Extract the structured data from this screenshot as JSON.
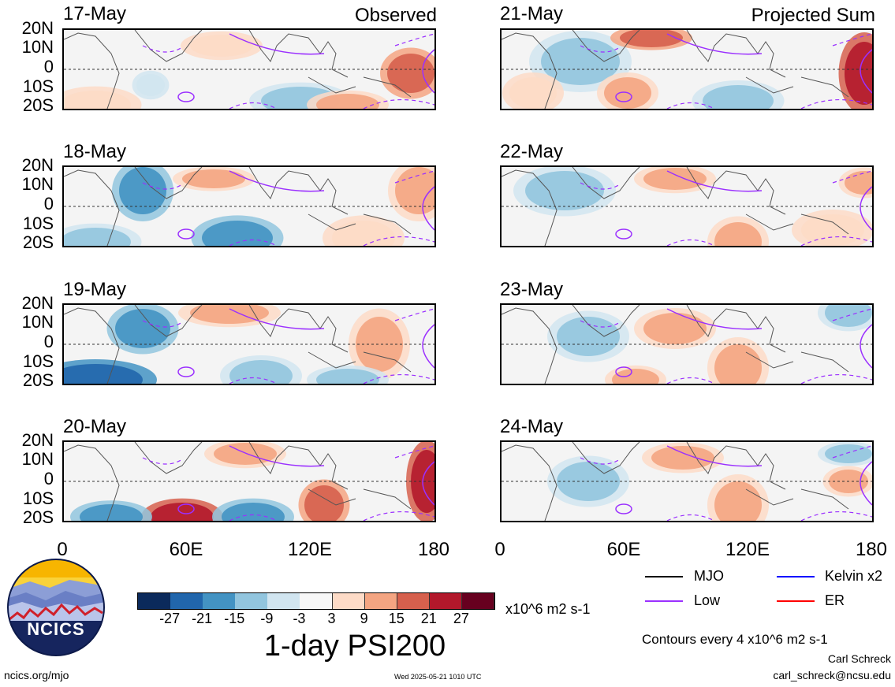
{
  "panels": [
    {
      "id": "p1",
      "date": "17-May",
      "tag": "Observed"
    },
    {
      "id": "p2",
      "date": "18-May",
      "tag": ""
    },
    {
      "id": "p3",
      "date": "19-May",
      "tag": ""
    },
    {
      "id": "p4",
      "date": "20-May",
      "tag": ""
    },
    {
      "id": "p5",
      "date": "21-May",
      "tag": "Projected Sum"
    },
    {
      "id": "p6",
      "date": "22-May",
      "tag": ""
    },
    {
      "id": "p7",
      "date": "23-May",
      "tag": ""
    },
    {
      "id": "p8",
      "date": "24-May",
      "tag": ""
    }
  ],
  "lat_labels": [
    "20N",
    "10N",
    "0",
    "10S",
    "20S"
  ],
  "lon_labels": [
    "0",
    "60E",
    "120E",
    "180"
  ],
  "colorbar": {
    "labels": [
      "-27",
      "-21",
      "-15",
      "-9",
      "-3",
      "3",
      "9",
      "15",
      "21",
      "27"
    ],
    "colors": [
      "#0b2a5b",
      "#2166ac",
      "#4393c3",
      "#92c5de",
      "#d1e5f0",
      "#f7f7f7",
      "#fddbc7",
      "#f4a582",
      "#d6604d",
      "#b2182b",
      "#67001f"
    ],
    "units": "x10^6 m2 s-1"
  },
  "title": "1-day PSI200",
  "legend": [
    {
      "label": "MJO",
      "color": "#000000"
    },
    {
      "label": "Kelvin x2",
      "color": "#0000ff"
    },
    {
      "label": "Low",
      "color": "#9b30ff"
    },
    {
      "label": "ER",
      "color": "#ff0000"
    }
  ],
  "contour_note": "Contours every 4 x10^6 m2 s-1",
  "author": "Carl Schreck",
  "email": "carl_schreck@ncsu.edu",
  "website": "ncics.org/mjo",
  "timestamp": "Wed 2025-05-21 1010 UTC",
  "logo_text": "NCICS"
}
